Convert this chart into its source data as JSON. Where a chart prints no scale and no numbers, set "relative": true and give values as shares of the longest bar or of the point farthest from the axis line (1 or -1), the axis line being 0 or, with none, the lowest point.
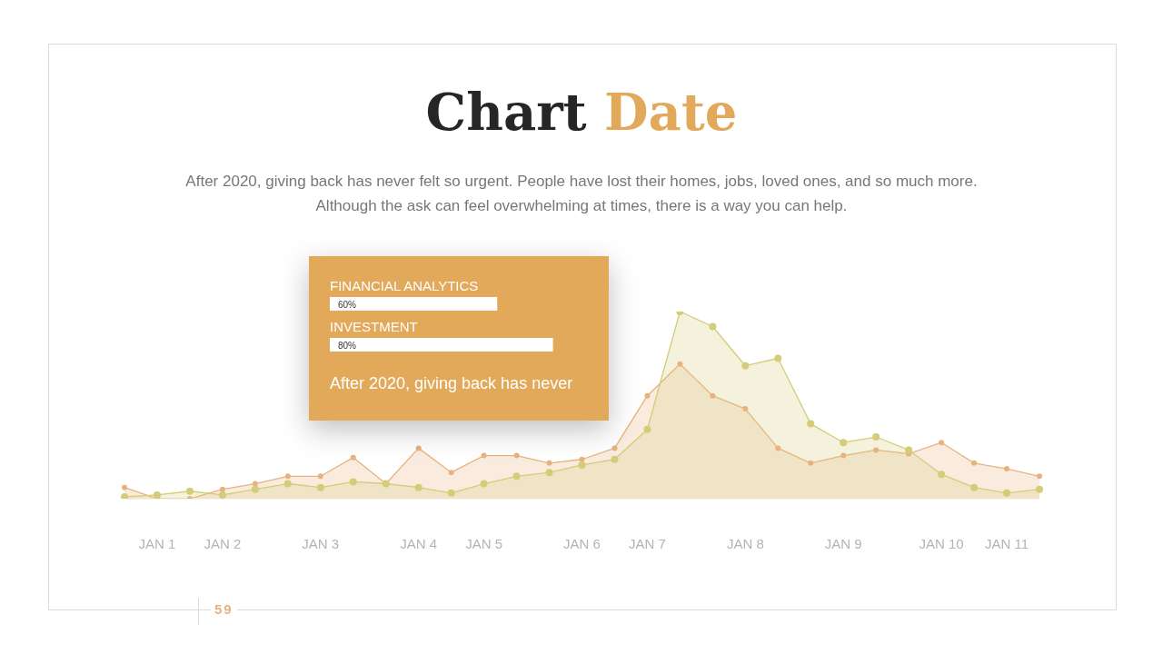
{
  "chart_data": [
    {
      "type": "area",
      "title": "Chart Date",
      "subtitle": "After 2020, giving back has never felt so urgent. People have lost their homes, jobs, loved ones, and so much more. Although the ask can feel overwhelming at times, there is a way you can help.",
      "relative": true,
      "categories": [
        null,
        "JAN 1",
        null,
        "JAN 2",
        null,
        null,
        "JAN 3",
        null,
        null,
        "JAN 4",
        null,
        "JAN 5",
        null,
        null,
        "JAN 6",
        null,
        "JAN 7",
        null,
        null,
        "JAN 8",
        null,
        null,
        "JAN 9",
        null,
        null,
        "JAN 10",
        null,
        "JAN 11",
        null
      ],
      "series": [
        {
          "color": "#e8b27e",
          "values": [
            0.06,
            0,
            0,
            0.05,
            0.08,
            0.12,
            0.12,
            0.22,
            0.08,
            0.27,
            0.14,
            0.23,
            0.23,
            0.19,
            0.21,
            0.27,
            0.55,
            0.72,
            0.55,
            0.48,
            0.27,
            0.19,
            0.23,
            0.26,
            0.24,
            0.3,
            0.19,
            0.16,
            0.12
          ]
        },
        {
          "color": "#d4cc78",
          "values": [
            0.01,
            0.02,
            0.04,
            0.02,
            0.05,
            0.08,
            0.06,
            0.09,
            0.08,
            0.06,
            0.03,
            0.08,
            0.12,
            0.14,
            0.18,
            0.21,
            0.37,
            1,
            0.92,
            0.71,
            0.75,
            0.4,
            0.3,
            0.33,
            0.26,
            0.13,
            0.06,
            0.03,
            0.05
          ]
        }
      ],
      "marker": "circle",
      "grid": false,
      "legend": false,
      "annotations": [
        "59"
      ]
    },
    {
      "type": "bar",
      "orientation": "horizontal",
      "categories": [
        "FINANCIAL ANALYTICS",
        "INVESTMENT"
      ],
      "values": [
        60,
        80
      ],
      "color": "#ffffff",
      "value_labels": [
        "60%",
        "80%"
      ],
      "xlim": [
        0,
        100
      ],
      "tick_labels": "y",
      "annotations": [
        "After 2020, giving back has never"
      ]
    }
  ]
}
